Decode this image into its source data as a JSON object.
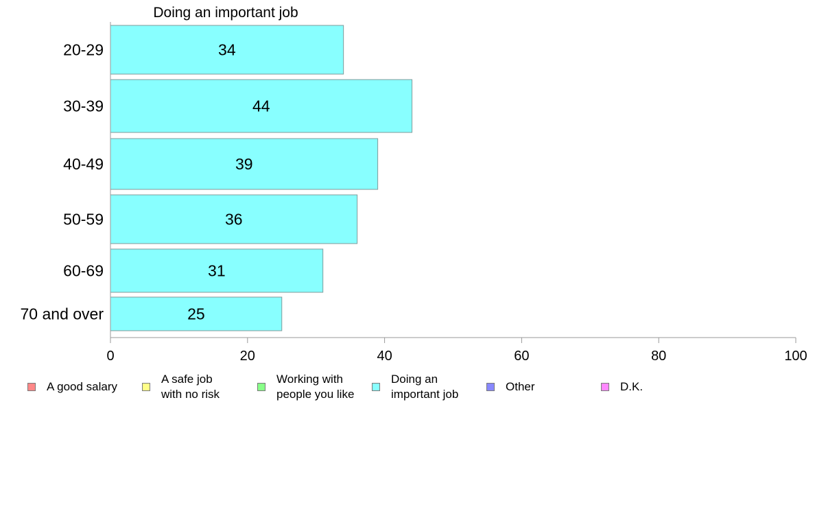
{
  "chart_data": {
    "type": "bar",
    "orientation": "horizontal",
    "title": "Doing an important job",
    "xlabel": "",
    "ylabel": "",
    "categories": [
      "20-29",
      "30-39",
      "40-49",
      "50-59",
      "60-69",
      "70 and over"
    ],
    "values": [
      34,
      44,
      39,
      36,
      31,
      25
    ],
    "value_labels": [
      "34",
      "44",
      "39",
      "36",
      "31",
      "25"
    ],
    "xlim": [
      0,
      100
    ],
    "xticks": [
      0,
      20,
      40,
      60,
      80,
      100
    ],
    "xtick_labels": [
      "0",
      "20",
      "40",
      "60",
      "80",
      "100"
    ],
    "grid": false,
    "bar_color": "#88ffff",
    "bar_edge_color": "#7f9a9a",
    "legend": {
      "placement": "bottom",
      "entries": [
        {
          "label": "A good salary",
          "color": "#ff8888"
        },
        {
          "label": "A safe job\nwith no risk",
          "color": "#ffff88"
        },
        {
          "label": "Working with\npeople you like",
          "color": "#88ff88"
        },
        {
          "label": "Doing an\nimportant job",
          "color": "#88ffff"
        },
        {
          "label": "Other",
          "color": "#8888ff"
        },
        {
          "label": "D.K.",
          "color": "#ff88ff"
        }
      ]
    }
  }
}
